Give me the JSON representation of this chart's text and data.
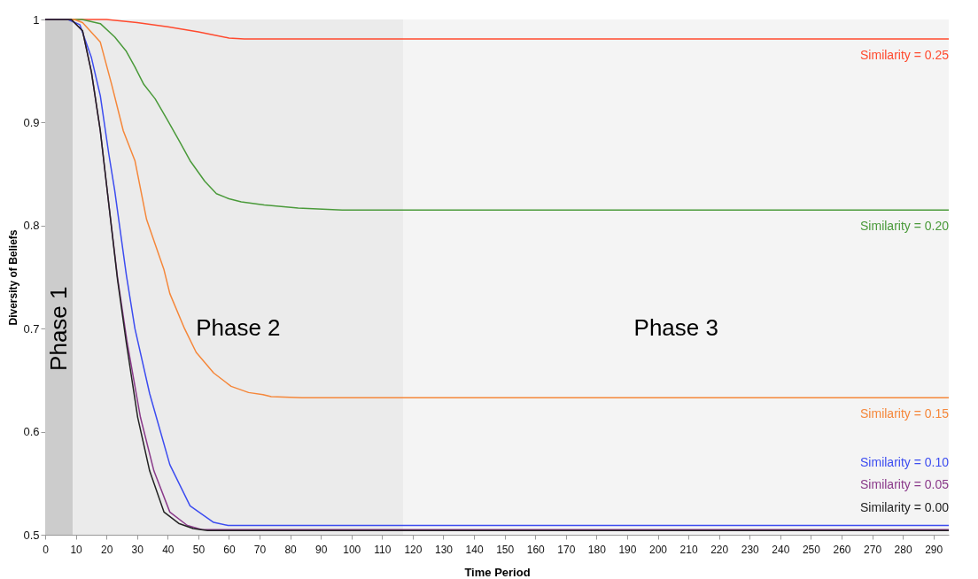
{
  "chart_data": {
    "type": "line",
    "xlabel": "Time Period",
    "ylabel": "Diversity of Beliefs",
    "xlim": [
      0,
      295
    ],
    "ylim": [
      0.5,
      1
    ],
    "xticks": [
      0,
      10,
      20,
      30,
      40,
      50,
      60,
      70,
      80,
      90,
      100,
      110,
      120,
      130,
      140,
      150,
      160,
      170,
      180,
      190,
      200,
      210,
      220,
      230,
      240,
      250,
      260,
      270,
      280,
      290
    ],
    "yticks": [
      0.5,
      0.6,
      0.7,
      0.8,
      0.9,
      1
    ],
    "grid": false,
    "marker": "none",
    "line_style": "solid",
    "bands": [
      {
        "axis": "x",
        "from": 0,
        "to": 9,
        "label": "Phase 1",
        "color": "#cccccc"
      },
      {
        "axis": "x",
        "from": 9,
        "to": 117,
        "label": "Phase 2",
        "color": "#ebebeb"
      },
      {
        "axis": "x",
        "from": 117,
        "to": 295,
        "label": "Phase 3",
        "color": "#f4f4f4"
      }
    ],
    "series": [
      {
        "name": "Similarity = 0.25",
        "color": "#ff4a2e",
        "x": [
          0,
          20,
          30,
          40,
          50,
          55,
          60,
          65,
          295
        ],
        "values": [
          1,
          1,
          0.997,
          0.993,
          0.988,
          0.985,
          0.982,
          0.981,
          0.981
        ]
      },
      {
        "name": "Similarity = 0.20",
        "color": "#4a9a3a",
        "x": [
          0,
          12,
          18,
          22.7,
          26.5,
          29.3,
          32.2,
          35.9,
          39.8,
          43.6,
          47.3,
          52.1,
          55.9,
          60,
          64,
          71.5,
          82.6,
          97,
          295
        ],
        "values": [
          1,
          1,
          0.996,
          0.983,
          0.969,
          0.954,
          0.937,
          0.923,
          0.903,
          0.883,
          0.863,
          0.843,
          0.831,
          0.826,
          0.823,
          0.82,
          0.817,
          0.815,
          0.815
        ]
      },
      {
        "name": "Similarity = 0.15",
        "color": "#f5873a",
        "x": [
          0,
          9.5,
          12.2,
          18,
          21.7,
          25.5,
          29.3,
          33.1,
          38.8,
          40.7,
          45.5,
          49.3,
          55,
          60.7,
          66.4,
          71.1,
          73.8,
          83.8,
          295
        ],
        "values": [
          1,
          1,
          0.997,
          0.978,
          0.937,
          0.892,
          0.863,
          0.806,
          0.757,
          0.734,
          0.7,
          0.677,
          0.657,
          0.644,
          0.638,
          0.636,
          0.634,
          0.633,
          0.633
        ]
      },
      {
        "name": "Similarity = 0.10",
        "color": "#3c4cf0",
        "x": [
          0,
          7.4,
          11.3,
          15.1,
          18,
          20.8,
          22.7,
          26.5,
          29.3,
          34.1,
          40.7,
          47.3,
          55,
          59.7,
          295
        ],
        "values": [
          1,
          1,
          0.995,
          0.963,
          0.926,
          0.869,
          0.834,
          0.752,
          0.7,
          0.637,
          0.568,
          0.528,
          0.512,
          0.509,
          0.509
        ]
      },
      {
        "name": "Similarity = 0.05",
        "color": "#8a3a8a",
        "x": [
          0,
          8.5,
          12.2,
          15.1,
          18,
          20.8,
          23.6,
          26.8,
          31.1,
          35.5,
          40.7,
          46.4,
          51.1,
          295
        ],
        "values": [
          1,
          1,
          0.989,
          0.949,
          0.892,
          0.82,
          0.75,
          0.686,
          0.614,
          0.562,
          0.522,
          0.509,
          0.505,
          0.505
        ]
      },
      {
        "name": "Similarity = 0.00",
        "color": "#222222",
        "x": [
          0,
          8.5,
          12.2,
          15.1,
          18,
          20.8,
          23.6,
          26.5,
          30.2,
          34.1,
          38.8,
          43.6,
          48.3,
          53,
          295
        ],
        "values": [
          1,
          1,
          0.989,
          0.949,
          0.892,
          0.82,
          0.748,
          0.686,
          0.614,
          0.562,
          0.522,
          0.511,
          0.506,
          0.504,
          0.504
        ]
      }
    ]
  }
}
